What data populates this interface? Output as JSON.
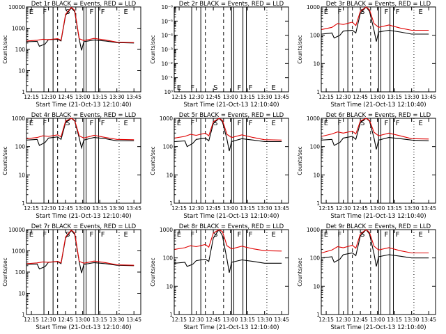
{
  "title_suffix": "BLACK = Events, RED = LLD",
  "colors": {
    "events": "#000000",
    "lld": "#e00000"
  },
  "ylabel": "Counts/sec",
  "xlabel": "Start Time (21-Oct-13 12:10:40)",
  "x_ticks": [
    "12:15",
    "12:30",
    "12:45",
    "13:00",
    "13:15",
    "13:30",
    "13:45"
  ],
  "chart_data": [
    {
      "type": "line",
      "title": "Det 1r  BLACK = Events, RED = LLD",
      "xlabel": "Start Time (21-Oct-13 12:10:40)",
      "ylabel": "Counts/sec",
      "y_scale": "log",
      "ylim": [
        1,
        10000
      ],
      "y_tick_labels": [
        "1",
        "10",
        "100",
        "1000",
        "10000"
      ],
      "x_ticks": [
        "12:15",
        "12:30",
        "12:45",
        "13:00",
        "13:15",
        "13:30",
        "13:45"
      ],
      "region_labels": [
        "E",
        "F",
        "S",
        "F",
        "F",
        "E"
      ],
      "series": [
        {
          "name": "BLACK = Events",
          "x": [
            "12:11",
            "12:20",
            "12:22",
            "12:27",
            "12:30",
            "12:38",
            "12:41",
            "12:45",
            "12:50",
            "12:53",
            "12:57",
            "12:59",
            "13:01",
            "13:10",
            "13:20",
            "13:30",
            "13:45"
          ],
          "values": [
            230,
            240,
            140,
            180,
            290,
            300,
            250,
            4000,
            9000,
            6000,
            300,
            90,
            230,
            280,
            250,
            210,
            200
          ]
        },
        {
          "name": "RED = LLD",
          "x": [
            "12:11",
            "12:20",
            "12:25",
            "12:30",
            "12:38",
            "12:41",
            "12:45",
            "12:50",
            "12:53",
            "12:57",
            "13:01",
            "13:10",
            "13:20",
            "13:30",
            "13:45"
          ],
          "values": [
            250,
            270,
            300,
            290,
            320,
            270,
            4500,
            9500,
            7000,
            320,
            260,
            330,
            280,
            220,
            210
          ]
        }
      ]
    },
    {
      "type": "line",
      "title": "Det 2r  BLACK = Events, RED = LLD",
      "xlabel": "Start Time (21-Oct-13 12:10:40)",
      "ylabel": "Counts/sec",
      "y_scale": "log",
      "ylim": [
        1,
        1e-06
      ],
      "y_tick_labels": [
        "10⁰",
        "10⁻¹",
        "10⁻²",
        "10⁻³",
        "10⁻⁴",
        "10⁻⁵",
        "10⁻⁶"
      ],
      "x_ticks": [
        "12:15",
        "12:30",
        "12:45",
        "13:00",
        "13:15",
        "13:30",
        "13:45"
      ],
      "region_labels": [
        "E",
        "F",
        "S",
        "F",
        "F",
        "E"
      ],
      "series": []
    },
    {
      "type": "line",
      "title": "Det 3r  BLACK = Events, RED = LLD",
      "xlabel": "Start Time (21-Oct-13 12:10:40)",
      "ylabel": "Counts/sec",
      "y_scale": "log",
      "ylim": [
        1,
        1000
      ],
      "y_tick_labels": [
        "1",
        "10",
        "100",
        "1000"
      ],
      "x_ticks": [
        "12:15",
        "12:30",
        "12:45",
        "13:00",
        "13:15",
        "13:30",
        "13:45"
      ],
      "region_labels": [
        "E",
        "F",
        "S",
        "F",
        "F",
        "E"
      ],
      "series": [
        {
          "name": "BLACK = Events",
          "x": [
            "12:11",
            "12:20",
            "12:22",
            "12:27",
            "12:30",
            "12:38",
            "12:41",
            "12:45",
            "12:50",
            "12:53",
            "12:57",
            "12:59",
            "13:01",
            "13:10",
            "13:20",
            "13:30",
            "13:45"
          ],
          "values": [
            110,
            120,
            80,
            100,
            140,
            150,
            120,
            600,
            1000,
            700,
            150,
            60,
            130,
            150,
            130,
            110,
            110
          ]
        },
        {
          "name": "RED = LLD",
          "x": [
            "12:11",
            "12:20",
            "12:25",
            "12:30",
            "12:38",
            "12:41",
            "12:45",
            "12:50",
            "12:53",
            "12:57",
            "13:01",
            "13:10",
            "13:20",
            "13:30",
            "13:45"
          ],
          "values": [
            160,
            190,
            260,
            240,
            290,
            220,
            700,
            1100,
            800,
            260,
            190,
            230,
            180,
            150,
            150
          ]
        }
      ]
    },
    {
      "type": "line",
      "title": "Det 4r  BLACK = Events, RED = LLD",
      "xlabel": "Start Time (21-Oct-13 12:10:40)",
      "ylabel": "Counts/sec",
      "y_scale": "log",
      "ylim": [
        1,
        1000
      ],
      "y_tick_labels": [
        "1",
        "10",
        "100",
        "1000"
      ],
      "x_ticks": [
        "12:15",
        "12:30",
        "12:45",
        "13:00",
        "13:15",
        "13:30",
        "13:45"
      ],
      "region_labels": [
        "E",
        "F",
        "S",
        "F",
        "F",
        "E"
      ],
      "series": [
        {
          "name": "BLACK = Events",
          "x": [
            "12:11",
            "12:20",
            "12:22",
            "12:27",
            "12:30",
            "12:38",
            "12:41",
            "12:45",
            "12:50",
            "12:53",
            "12:57",
            "12:59",
            "13:01",
            "13:10",
            "13:20",
            "13:30",
            "13:45"
          ],
          "values": [
            170,
            180,
            110,
            140,
            200,
            220,
            180,
            700,
            1000,
            800,
            200,
            90,
            170,
            210,
            190,
            160,
            160
          ]
        },
        {
          "name": "RED = LLD",
          "x": [
            "12:11",
            "12:20",
            "12:25",
            "12:30",
            "12:38",
            "12:41",
            "12:45",
            "12:50",
            "12:53",
            "12:57",
            "13:01",
            "13:10",
            "13:20",
            "13:30",
            "13:45"
          ],
          "values": [
            190,
            210,
            240,
            230,
            260,
            220,
            800,
            1100,
            850,
            240,
            200,
            250,
            210,
            180,
            175
          ]
        }
      ]
    },
    {
      "type": "line",
      "title": "Det 5r  BLACK = Events, RED = LLD",
      "xlabel": "Start Time (21-Oct-13 12:10:40)",
      "ylabel": "Counts/sec",
      "y_scale": "log",
      "ylim": [
        1,
        1000
      ],
      "y_tick_labels": [
        "1",
        "10",
        "100",
        "1000"
      ],
      "x_ticks": [
        "12:15",
        "12:30",
        "12:45",
        "13:00",
        "13:15",
        "13:30",
        "13:45"
      ],
      "region_labels": [
        "E",
        "F",
        "S",
        "F",
        "F",
        "E"
      ],
      "series": [
        {
          "name": "BLACK = Events",
          "x": [
            "12:11",
            "12:20",
            "12:22",
            "12:27",
            "12:30",
            "12:38",
            "12:41",
            "12:45",
            "12:50",
            "12:53",
            "12:57",
            "12:59",
            "13:01",
            "13:10",
            "13:20",
            "13:30",
            "13:45"
          ],
          "values": [
            150,
            160,
            100,
            130,
            180,
            200,
            160,
            650,
            1000,
            750,
            180,
            70,
            150,
            190,
            170,
            150,
            150
          ]
        },
        {
          "name": "RED = LLD",
          "x": [
            "12:11",
            "12:20",
            "12:25",
            "12:30",
            "12:38",
            "12:41",
            "12:45",
            "12:50",
            "12:53",
            "12:57",
            "13:01",
            "13:10",
            "13:20",
            "13:30",
            "13:45"
          ],
          "values": [
            200,
            230,
            270,
            250,
            300,
            240,
            750,
            1100,
            850,
            270,
            210,
            260,
            210,
            175,
            170
          ]
        }
      ]
    },
    {
      "type": "line",
      "title": "Det 6r  BLACK = Events, RED = LLD",
      "xlabel": "Start Time (21-Oct-13 12:10:40)",
      "ylabel": "Counts/sec",
      "y_scale": "log",
      "ylim": [
        1,
        1000
      ],
      "y_tick_labels": [
        "1",
        "10",
        "100",
        "1000"
      ],
      "x_ticks": [
        "12:15",
        "12:30",
        "12:45",
        "13:00",
        "13:15",
        "13:30",
        "13:45"
      ],
      "region_labels": [
        "E",
        "F",
        "S",
        "F",
        "F",
        "E"
      ],
      "series": [
        {
          "name": "BLACK = Events",
          "x": [
            "12:11",
            "12:20",
            "12:22",
            "12:27",
            "12:30",
            "12:38",
            "12:41",
            "12:45",
            "12:50",
            "12:53",
            "12:57",
            "12:59",
            "13:01",
            "13:10",
            "13:20",
            "13:30",
            "13:45"
          ],
          "values": [
            170,
            180,
            110,
            140,
            200,
            230,
            180,
            700,
            1000,
            800,
            200,
            80,
            170,
            210,
            190,
            170,
            160
          ]
        },
        {
          "name": "RED = LLD",
          "x": [
            "12:11",
            "12:20",
            "12:25",
            "12:30",
            "12:38",
            "12:41",
            "12:45",
            "12:50",
            "12:53",
            "12:57",
            "13:01",
            "13:10",
            "13:20",
            "13:30",
            "13:45"
          ],
          "values": [
            230,
            280,
            330,
            300,
            350,
            280,
            800,
            1100,
            850,
            320,
            240,
            300,
            240,
            190,
            185
          ]
        }
      ]
    },
    {
      "type": "line",
      "title": "Det 7r  BLACK = Events, RED = LLD",
      "xlabel": "Start Time (21-Oct-13 12:10:40)",
      "ylabel": "Counts/sec",
      "y_scale": "log",
      "ylim": [
        1,
        10000
      ],
      "y_tick_labels": [
        "1",
        "10",
        "100",
        "1000",
        "10000"
      ],
      "x_ticks": [
        "12:15",
        "12:30",
        "12:45",
        "13:00",
        "13:15",
        "13:30",
        "13:45"
      ],
      "region_labels": [
        "E",
        "F",
        "S",
        "F",
        "F",
        "E"
      ],
      "series": [
        {
          "name": "BLACK = Events",
          "x": [
            "12:11",
            "12:20",
            "12:22",
            "12:27",
            "12:30",
            "12:38",
            "12:41",
            "12:45",
            "12:50",
            "12:53",
            "12:57",
            "12:59",
            "13:01",
            "13:10",
            "13:20",
            "13:30",
            "13:45"
          ],
          "values": [
            230,
            240,
            140,
            180,
            290,
            310,
            250,
            4000,
            9000,
            6000,
            300,
            90,
            230,
            280,
            250,
            210,
            200
          ]
        },
        {
          "name": "RED = LLD",
          "x": [
            "12:11",
            "12:20",
            "12:25",
            "12:30",
            "12:38",
            "12:41",
            "12:45",
            "12:50",
            "12:53",
            "12:57",
            "13:01",
            "13:10",
            "13:20",
            "13:30",
            "13:45"
          ],
          "values": [
            250,
            270,
            300,
            290,
            320,
            270,
            4500,
            9500,
            7000,
            320,
            260,
            330,
            280,
            220,
            210
          ]
        }
      ]
    },
    {
      "type": "line",
      "title": "Det 8r  BLACK = Events, RED = LLD",
      "xlabel": "Start Time (21-Oct-13 12:10:40)",
      "ylabel": "Counts/sec",
      "y_scale": "log",
      "ylim": [
        1,
        1000
      ],
      "y_tick_labels": [
        "1",
        "10",
        "100",
        "1000"
      ],
      "x_ticks": [
        "12:15",
        "12:30",
        "12:45",
        "13:00",
        "13:15",
        "13:30",
        "13:45"
      ],
      "region_labels": [
        "E",
        "F",
        "S",
        "F",
        "F",
        "E"
      ],
      "series": [
        {
          "name": "BLACK = Events",
          "x": [
            "12:11",
            "12:20",
            "12:22",
            "12:27",
            "12:30",
            "12:38",
            "12:41",
            "12:45",
            "12:50",
            "12:53",
            "12:57",
            "12:59",
            "13:01",
            "13:10",
            "13:20",
            "13:30",
            "13:45"
          ],
          "values": [
            65,
            70,
            50,
            60,
            80,
            90,
            75,
            500,
            1000,
            600,
            90,
            30,
            70,
            85,
            75,
            65,
            65
          ]
        },
        {
          "name": "RED = LLD",
          "x": [
            "12:11",
            "12:20",
            "12:25",
            "12:30",
            "12:38",
            "12:41",
            "12:45",
            "12:50",
            "12:53",
            "12:57",
            "13:01",
            "13:10",
            "13:20",
            "13:30",
            "13:45"
          ],
          "values": [
            200,
            230,
            270,
            250,
            300,
            240,
            750,
            1100,
            850,
            270,
            210,
            260,
            210,
            180,
            175
          ]
        }
      ]
    },
    {
      "type": "line",
      "title": "Det 9r  BLACK = Events, RED = LLD",
      "xlabel": "Start Time (21-Oct-13 12:10:40)",
      "ylabel": "Counts/sec",
      "y_scale": "log",
      "ylim": [
        1,
        1000
      ],
      "y_tick_labels": [
        "1",
        "10",
        "100",
        "1000"
      ],
      "x_ticks": [
        "12:15",
        "12:30",
        "12:45",
        "13:00",
        "13:15",
        "13:30",
        "13:45"
      ],
      "region_labels": [
        "E",
        "F",
        "S",
        "F",
        "F",
        "E"
      ],
      "series": [
        {
          "name": "BLACK = Events",
          "x": [
            "12:11",
            "12:20",
            "12:22",
            "12:27",
            "12:30",
            "12:38",
            "12:41",
            "12:45",
            "12:50",
            "12:53",
            "12:57",
            "12:59",
            "13:01",
            "13:10",
            "13:20",
            "13:30",
            "13:45"
          ],
          "values": [
            100,
            110,
            70,
            90,
            130,
            150,
            120,
            600,
            1000,
            700,
            140,
            50,
            110,
            130,
            115,
            100,
            100
          ]
        },
        {
          "name": "RED = LLD",
          "x": [
            "12:11",
            "12:20",
            "12:25",
            "12:30",
            "12:38",
            "12:41",
            "12:45",
            "12:50",
            "12:53",
            "12:57",
            "13:01",
            "13:10",
            "13:20",
            "13:30",
            "13:45"
          ],
          "values": [
            150,
            190,
            250,
            230,
            280,
            220,
            700,
            1100,
            800,
            260,
            190,
            230,
            180,
            150,
            150
          ]
        }
      ]
    }
  ]
}
